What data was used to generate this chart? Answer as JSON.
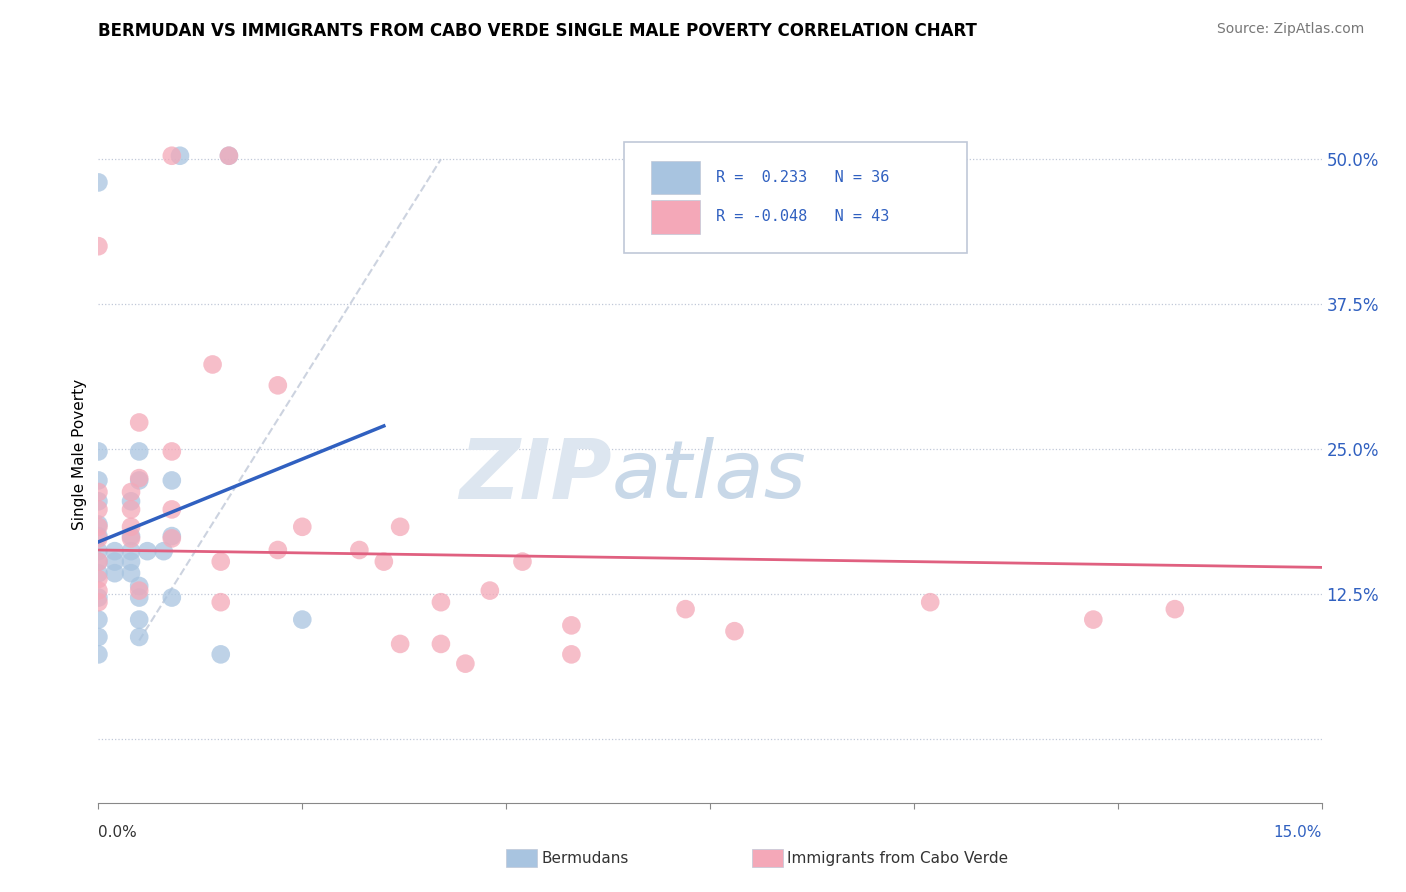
{
  "title": "BERMUDAN VS IMMIGRANTS FROM CABO VERDE SINGLE MALE POVERTY CORRELATION CHART",
  "source": "Source: ZipAtlas.com",
  "ylabel": "Single Male Poverty",
  "y_ticks": [
    0.0,
    0.125,
    0.25,
    0.375,
    0.5
  ],
  "y_tick_labels": [
    "",
    "12.5%",
    "25.0%",
    "37.5%",
    "50.0%"
  ],
  "x_ticks": [
    0.0,
    0.025,
    0.05,
    0.075,
    0.1,
    0.125,
    0.15
  ],
  "x_range": [
    0.0,
    0.15
  ],
  "y_range": [
    -0.055,
    0.545
  ],
  "legend_r1": "R =  0.233",
  "legend_n1": "N = 36",
  "legend_r2": "R = -0.048",
  "legend_n2": "N = 43",
  "blue_color": "#a8c4e0",
  "pink_color": "#f4a8b8",
  "blue_line_color": "#3060c0",
  "pink_line_color": "#e06080",
  "dashed_line_color": "#c0c8d8",
  "blue_line": [
    [
      0.0,
      0.17
    ],
    [
      0.035,
      0.27
    ]
  ],
  "pink_line": [
    [
      0.0,
      0.163
    ],
    [
      0.15,
      0.148
    ]
  ],
  "dashed_line": [
    [
      0.005,
      0.085
    ],
    [
      0.042,
      0.5
    ]
  ],
  "blue_scatter": [
    [
      0.0,
      0.48
    ],
    [
      0.01,
      0.503
    ],
    [
      0.016,
      0.503
    ],
    [
      0.0,
      0.248
    ],
    [
      0.005,
      0.248
    ],
    [
      0.0,
      0.223
    ],
    [
      0.005,
      0.223
    ],
    [
      0.009,
      0.223
    ],
    [
      0.0,
      0.205
    ],
    [
      0.004,
      0.205
    ],
    [
      0.0,
      0.185
    ],
    [
      0.0,
      0.175
    ],
    [
      0.004,
      0.175
    ],
    [
      0.009,
      0.175
    ],
    [
      0.0,
      0.162
    ],
    [
      0.002,
      0.162
    ],
    [
      0.004,
      0.162
    ],
    [
      0.006,
      0.162
    ],
    [
      0.008,
      0.162
    ],
    [
      0.0,
      0.153
    ],
    [
      0.002,
      0.153
    ],
    [
      0.004,
      0.153
    ],
    [
      0.0,
      0.143
    ],
    [
      0.002,
      0.143
    ],
    [
      0.004,
      0.143
    ],
    [
      0.005,
      0.132
    ],
    [
      0.0,
      0.122
    ],
    [
      0.005,
      0.122
    ],
    [
      0.009,
      0.122
    ],
    [
      0.0,
      0.103
    ],
    [
      0.005,
      0.103
    ],
    [
      0.025,
      0.103
    ],
    [
      0.0,
      0.088
    ],
    [
      0.005,
      0.088
    ],
    [
      0.0,
      0.073
    ],
    [
      0.015,
      0.073
    ]
  ],
  "pink_scatter": [
    [
      0.009,
      0.503
    ],
    [
      0.016,
      0.503
    ],
    [
      0.0,
      0.425
    ],
    [
      0.014,
      0.323
    ],
    [
      0.022,
      0.305
    ],
    [
      0.005,
      0.273
    ],
    [
      0.009,
      0.248
    ],
    [
      0.005,
      0.225
    ],
    [
      0.0,
      0.213
    ],
    [
      0.004,
      0.213
    ],
    [
      0.0,
      0.198
    ],
    [
      0.004,
      0.198
    ],
    [
      0.009,
      0.198
    ],
    [
      0.0,
      0.183
    ],
    [
      0.004,
      0.183
    ],
    [
      0.025,
      0.183
    ],
    [
      0.037,
      0.183
    ],
    [
      0.0,
      0.173
    ],
    [
      0.004,
      0.173
    ],
    [
      0.009,
      0.173
    ],
    [
      0.022,
      0.163
    ],
    [
      0.032,
      0.163
    ],
    [
      0.0,
      0.153
    ],
    [
      0.015,
      0.153
    ],
    [
      0.035,
      0.153
    ],
    [
      0.052,
      0.153
    ],
    [
      0.0,
      0.138
    ],
    [
      0.0,
      0.128
    ],
    [
      0.005,
      0.128
    ],
    [
      0.048,
      0.128
    ],
    [
      0.0,
      0.118
    ],
    [
      0.015,
      0.118
    ],
    [
      0.042,
      0.118
    ],
    [
      0.072,
      0.112
    ],
    [
      0.102,
      0.118
    ],
    [
      0.122,
      0.103
    ],
    [
      0.132,
      0.112
    ],
    [
      0.058,
      0.098
    ],
    [
      0.078,
      0.093
    ],
    [
      0.037,
      0.082
    ],
    [
      0.042,
      0.082
    ],
    [
      0.058,
      0.073
    ],
    [
      0.045,
      0.065
    ]
  ]
}
